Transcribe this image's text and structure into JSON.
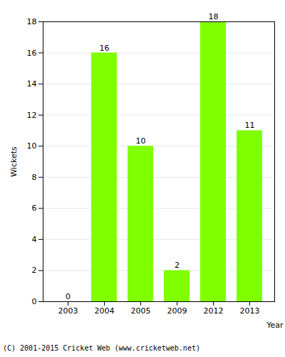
{
  "chart_data": {
    "type": "bar",
    "categories": [
      "2003",
      "2004",
      "2005",
      "2009",
      "2012",
      "2013"
    ],
    "values": [
      0,
      16,
      10,
      2,
      18,
      11
    ],
    "color": "#80ff00",
    "x_label": "Year",
    "y_label": "Wickets",
    "ylim": [
      0,
      18
    ],
    "yticks": [
      0,
      2,
      4,
      6,
      8,
      10,
      12,
      14,
      16,
      18
    ],
    "grid": true,
    "data_labels": true,
    "caption": "(C) 2001-2015 Cricket Web (www.cricketweb.net)"
  }
}
